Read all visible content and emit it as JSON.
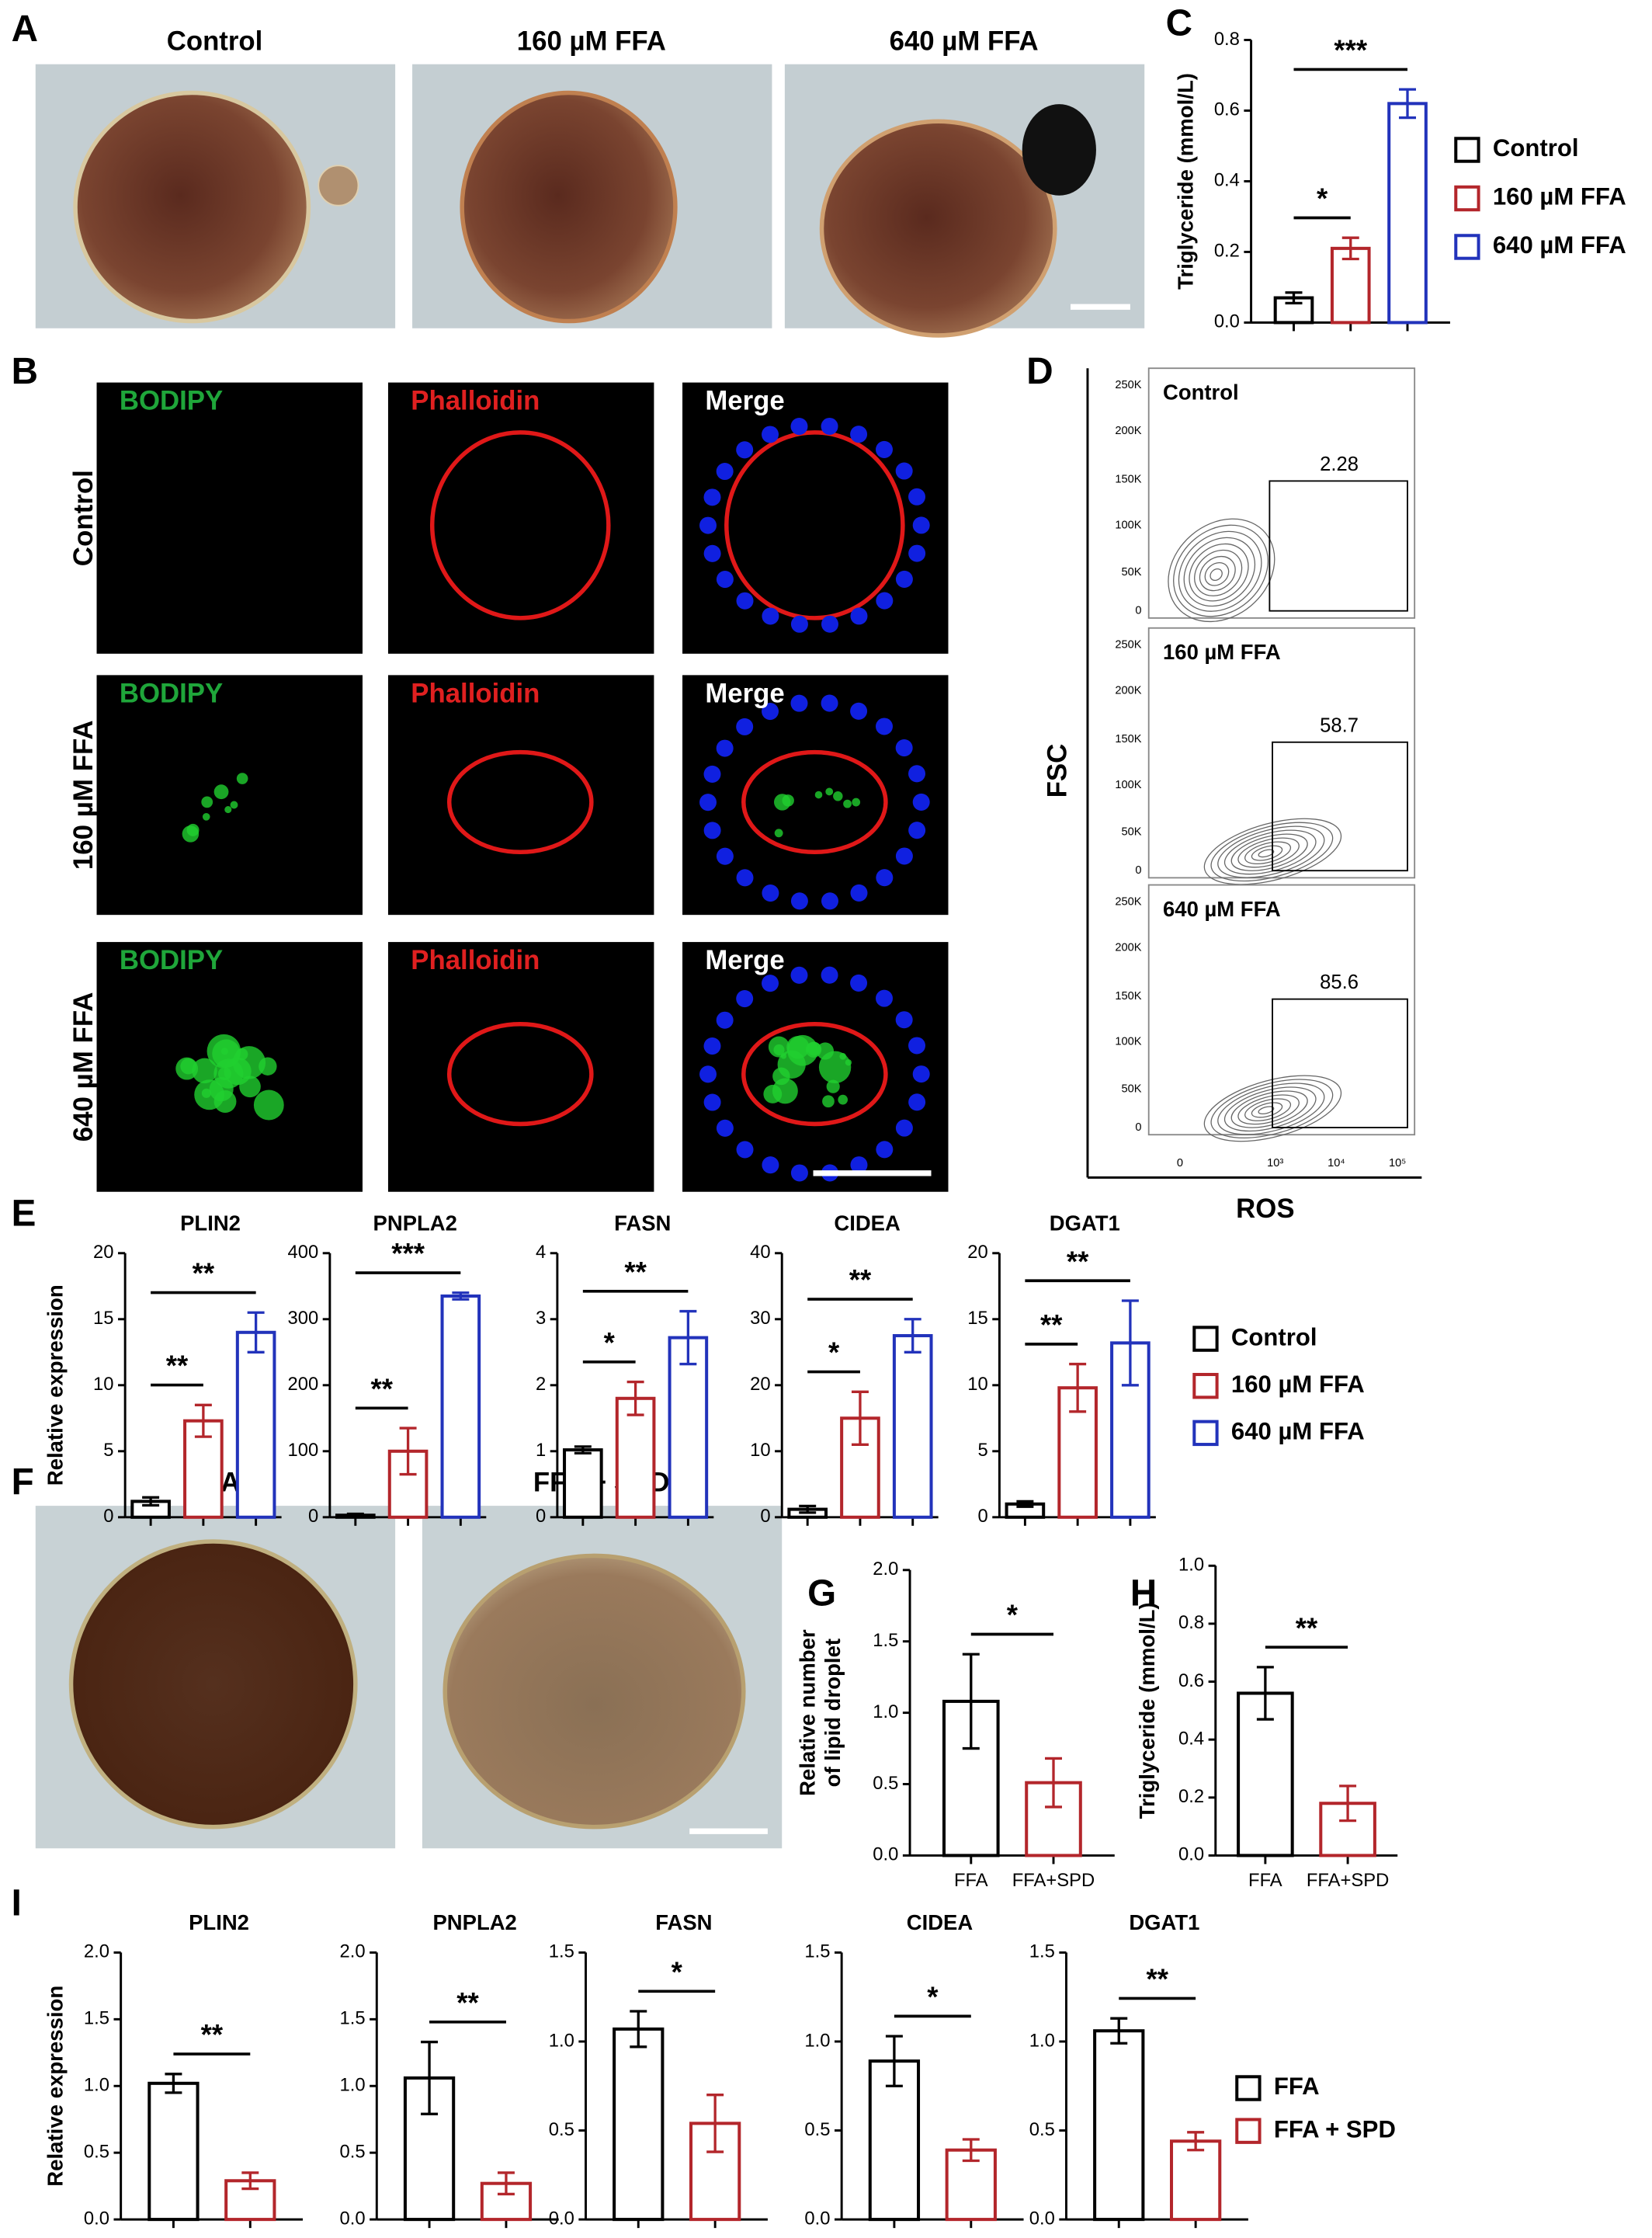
{
  "panel_labels": [
    "A",
    "B",
    "C",
    "D",
    "E",
    "F",
    "G",
    "H",
    "I"
  ],
  "micrographs": {
    "A": [
      "Control",
      "160 µM FFA",
      "640 µM FFA"
    ],
    "B": {
      "columns": [
        "BODIPY",
        "Phalloidin",
        "Merge"
      ],
      "rows": [
        "Control",
        "160 µM FFA",
        "640 µM FFA"
      ]
    },
    "F": [
      "FFA",
      "FFA + SPD"
    ]
  },
  "flow": {
    "ylabel": "FSC",
    "xlabel": "ROS",
    "yticks": [
      "250K",
      "200K",
      "150K",
      "100K",
      "50K",
      "0"
    ],
    "xticks": [
      "0",
      "10³",
      "10⁴",
      "10⁵"
    ],
    "panels": [
      {
        "label": "Control",
        "gate": 2.28
      },
      {
        "label": "160 µM FFA",
        "gate": 58.7
      },
      {
        "label": "640 µM FFA",
        "gate": 85.6
      }
    ]
  },
  "chart_data": [
    {
      "type": "bar",
      "ylabel": "Triglyceride (mmol/L)",
      "categories": [
        null,
        null,
        null
      ],
      "ylim": [
        0,
        0.8
      ],
      "yticks": [
        {
          "value": 0,
          "label": "0.0"
        },
        0.2,
        0.4,
        0.6,
        0.8
      ],
      "legend": true,
      "series": [
        {
          "name": "Control",
          "color": "#000000",
          "values": [
            0.07,
            null,
            null
          ],
          "errors": [
            0.015,
            null,
            null
          ]
        },
        {
          "name": "160 µM FFA",
          "color": "#b3262b",
          "values": [
            null,
            0.21,
            null
          ],
          "errors": [
            null,
            0.03,
            null
          ]
        },
        {
          "name": "640 µM FFA",
          "color": "#2233bb",
          "values": [
            null,
            null,
            0.62
          ],
          "errors": [
            null,
            null,
            0.04
          ]
        }
      ],
      "annotations": [
        {
          "text": "*",
          "span": [
            0,
            1
          ]
        },
        {
          "text": "***",
          "span": [
            0,
            2
          ]
        }
      ]
    },
    {
      "type": "bar",
      "title": "PLIN2",
      "ylabel": "Relative expression",
      "categories": [
        null,
        null,
        null
      ],
      "ylim": [
        0,
        20
      ],
      "yticks": [
        0,
        5,
        10,
        15,
        20
      ],
      "legend": true,
      "series": [
        {
          "name": "Control",
          "color": "#000000",
          "values": [
            1.2,
            null,
            null
          ],
          "errors": [
            0.3,
            null,
            null
          ]
        },
        {
          "name": "160 µM FFA",
          "color": "#b3262b",
          "values": [
            null,
            7.3,
            null
          ],
          "errors": [
            null,
            1.2,
            null
          ]
        },
        {
          "name": "640 µM FFA",
          "color": "#2233bb",
          "values": [
            null,
            null,
            14
          ],
          "errors": [
            null,
            null,
            1.5
          ]
        }
      ],
      "annotations": [
        {
          "text": "**",
          "span": [
            0,
            1
          ]
        },
        {
          "text": "**",
          "span": [
            0,
            2
          ]
        }
      ]
    },
    {
      "type": "bar",
      "title": "PNPLA2",
      "categories": [
        null,
        null,
        null
      ],
      "ylim": [
        0,
        400
      ],
      "yticks": [
        0,
        100,
        200,
        300,
        400
      ],
      "series": [
        {
          "name": "Control",
          "color": "#000000",
          "values": [
            3,
            null,
            null
          ],
          "errors": [
            2,
            null,
            null
          ]
        },
        {
          "name": "160 µM FFA",
          "color": "#b3262b",
          "values": [
            null,
            100,
            null
          ],
          "errors": [
            null,
            35,
            null
          ]
        },
        {
          "name": "640 µM FFA",
          "color": "#2233bb",
          "values": [
            null,
            null,
            335
          ],
          "errors": [
            null,
            null,
            5
          ]
        }
      ],
      "annotations": [
        {
          "text": "**",
          "span": [
            0,
            1
          ]
        },
        {
          "text": "***",
          "span": [
            0,
            2
          ]
        }
      ]
    },
    {
      "type": "bar",
      "title": "FASN",
      "categories": [
        null,
        null,
        null
      ],
      "ylim": [
        0,
        4
      ],
      "yticks": [
        0,
        1,
        2,
        3,
        4
      ],
      "series": [
        {
          "name": "Control",
          "color": "#000000",
          "values": [
            1.02,
            null,
            null
          ],
          "errors": [
            0.05,
            null,
            null
          ]
        },
        {
          "name": "160 µM FFA",
          "color": "#b3262b",
          "values": [
            null,
            1.8,
            null
          ],
          "errors": [
            null,
            0.25,
            null
          ]
        },
        {
          "name": "640 µM FFA",
          "color": "#2233bb",
          "values": [
            null,
            null,
            2.72
          ],
          "errors": [
            null,
            null,
            0.4
          ]
        }
      ],
      "annotations": [
        {
          "text": "*",
          "span": [
            0,
            1
          ]
        },
        {
          "text": "**",
          "span": [
            0,
            2
          ]
        }
      ]
    },
    {
      "type": "bar",
      "title": "CIDEA",
      "categories": [
        null,
        null,
        null
      ],
      "ylim": [
        0,
        40
      ],
      "yticks": [
        0,
        10,
        20,
        30,
        40
      ],
      "series": [
        {
          "name": "Control",
          "color": "#000000",
          "values": [
            1.2,
            null,
            null
          ],
          "errors": [
            0.5,
            null,
            null
          ]
        },
        {
          "name": "160 µM FFA",
          "color": "#b3262b",
          "values": [
            null,
            15,
            null
          ],
          "errors": [
            null,
            4,
            null
          ]
        },
        {
          "name": "640 µM FFA",
          "color": "#2233bb",
          "values": [
            null,
            null,
            27.5
          ],
          "errors": [
            null,
            null,
            2.5
          ]
        }
      ],
      "annotations": [
        {
          "text": "*",
          "span": [
            0,
            1
          ]
        },
        {
          "text": "**",
          "span": [
            0,
            2
          ]
        }
      ]
    },
    {
      "type": "bar",
      "title": "DGAT1",
      "categories": [
        null,
        null,
        null
      ],
      "ylim": [
        0,
        20
      ],
      "yticks": [
        0,
        5,
        10,
        15,
        20
      ],
      "series": [
        {
          "name": "Control",
          "color": "#000000",
          "values": [
            1,
            null,
            null
          ],
          "errors": [
            0.2,
            null,
            null
          ]
        },
        {
          "name": "160 µM FFA",
          "color": "#b3262b",
          "values": [
            null,
            9.8,
            null
          ],
          "errors": [
            null,
            1.8,
            null
          ]
        },
        {
          "name": "640 µM FFA",
          "color": "#2233bb",
          "values": [
            null,
            null,
            13.2
          ],
          "errors": [
            null,
            null,
            3.2
          ]
        }
      ],
      "annotations": [
        {
          "text": "**",
          "span": [
            0,
            1
          ]
        },
        {
          "text": "**",
          "span": [
            0,
            2
          ]
        }
      ]
    },
    {
      "type": "bar",
      "ylabel": [
        "Relative number",
        "of lipid droplet"
      ],
      "categories": [
        "FFA",
        "FFA+SPD"
      ],
      "values": [
        1.08,
        0.51
      ],
      "errors": [
        0.33,
        0.17
      ],
      "colors": [
        "#000000",
        "#b3262b"
      ],
      "ylim": [
        0,
        2
      ],
      "yticks": [
        {
          "value": 0,
          "label": "0.0"
        },
        0.5,
        {
          "value": 1,
          "label": "1.0"
        },
        1.5,
        {
          "value": 2,
          "label": "2.0"
        }
      ],
      "annotations": [
        {
          "text": "*",
          "span": [
            0,
            1
          ]
        }
      ]
    },
    {
      "type": "bar",
      "ylabel": "Triglyceride (mmol/L)",
      "categories": [
        "FFA",
        "FFA+SPD"
      ],
      "values": [
        0.56,
        0.18
      ],
      "errors": [
        0.09,
        0.06
      ],
      "colors": [
        "#000000",
        "#b3262b"
      ],
      "ylim": [
        0,
        1
      ],
      "yticks": [
        {
          "value": 0,
          "label": "0.0"
        },
        0.2,
        0.4,
        0.6,
        0.8,
        {
          "value": 1,
          "label": "1.0"
        }
      ],
      "annotations": [
        {
          "text": "**",
          "span": [
            0,
            1
          ]
        }
      ]
    },
    {
      "type": "bar",
      "title": "PLIN2",
      "ylabel": "Relative expression",
      "categories": [
        null,
        null
      ],
      "ylim": [
        0,
        2
      ],
      "yticks": [
        {
          "value": 0,
          "label": "0.0"
        },
        0.5,
        {
          "value": 1,
          "label": "1.0"
        },
        1.5,
        {
          "value": 2,
          "label": "2.0"
        }
      ],
      "legend": true,
      "series": [
        {
          "name": "FFA",
          "color": "#000000",
          "values": [
            1.02,
            null
          ],
          "errors": [
            0.07,
            null
          ]
        },
        {
          "name": "FFA + SPD",
          "color": "#b3262b",
          "values": [
            null,
            0.29
          ],
          "errors": [
            null,
            0.06
          ]
        }
      ],
      "annotations": [
        {
          "text": "**",
          "span": [
            0,
            1
          ]
        }
      ]
    },
    {
      "type": "bar",
      "title": "PNPLA2",
      "categories": [
        null,
        null
      ],
      "ylim": [
        0,
        2
      ],
      "yticks": [
        {
          "value": 0,
          "label": "0.0"
        },
        0.5,
        {
          "value": 1,
          "label": "1.0"
        },
        1.5,
        {
          "value": 2,
          "label": "2.0"
        }
      ],
      "series": [
        {
          "name": "FFA",
          "color": "#000000",
          "values": [
            1.06,
            null
          ],
          "errors": [
            0.27,
            null
          ]
        },
        {
          "name": "FFA + SPD",
          "color": "#b3262b",
          "values": [
            null,
            0.27
          ],
          "errors": [
            null,
            0.08
          ]
        }
      ],
      "annotations": [
        {
          "text": "**",
          "span": [
            0,
            1
          ]
        }
      ]
    },
    {
      "type": "bar",
      "title": "FASN",
      "categories": [
        null,
        null
      ],
      "ylim": [
        0,
        1.5
      ],
      "yticks": [
        {
          "value": 0,
          "label": "0.0"
        },
        0.5,
        {
          "value": 1,
          "label": "1.0"
        },
        1.5
      ],
      "series": [
        {
          "name": "FFA",
          "color": "#000000",
          "values": [
            1.07,
            null
          ],
          "errors": [
            0.1,
            null
          ]
        },
        {
          "name": "FFA + SPD",
          "color": "#b3262b",
          "values": [
            null,
            0.54
          ],
          "errors": [
            null,
            0.16
          ]
        }
      ],
      "annotations": [
        {
          "text": "*",
          "span": [
            0,
            1
          ]
        }
      ]
    },
    {
      "type": "bar",
      "title": "CIDEA",
      "categories": [
        null,
        null
      ],
      "ylim": [
        0,
        1.5
      ],
      "yticks": [
        {
          "value": 0,
          "label": "0.0"
        },
        0.5,
        {
          "value": 1,
          "label": "1.0"
        },
        1.5
      ],
      "series": [
        {
          "name": "FFA",
          "color": "#000000",
          "values": [
            0.89,
            null
          ],
          "errors": [
            0.14,
            null
          ]
        },
        {
          "name": "FFA + SPD",
          "color": "#b3262b",
          "values": [
            null,
            0.39
          ],
          "errors": [
            null,
            0.06
          ]
        }
      ],
      "annotations": [
        {
          "text": "*",
          "span": [
            0,
            1
          ]
        }
      ]
    },
    {
      "type": "bar",
      "title": "DGAT1",
      "categories": [
        null,
        null
      ],
      "ylim": [
        0,
        1.5
      ],
      "yticks": [
        {
          "value": 0,
          "label": "0.0"
        },
        0.5,
        {
          "value": 1,
          "label": "1.0"
        },
        1.5
      ],
      "series": [
        {
          "name": "FFA",
          "color": "#000000",
          "values": [
            1.06,
            null
          ],
          "errors": [
            0.07,
            null
          ]
        },
        {
          "name": "FFA + SPD",
          "color": "#b3262b",
          "values": [
            null,
            0.44
          ],
          "errors": [
            null,
            0.05
          ]
        }
      ],
      "annotations": [
        {
          "text": "**",
          "span": [
            0,
            1
          ]
        }
      ]
    }
  ]
}
